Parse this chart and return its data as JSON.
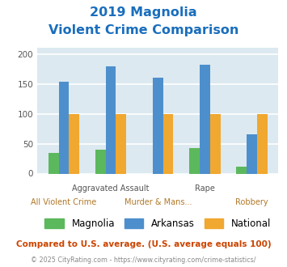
{
  "title_line1": "2019 Magnolia",
  "title_line2": "Violent Crime Comparison",
  "title_color": "#1a6ebd",
  "categories": [
    "All Violent Crime",
    "Aggravated Assault",
    "Murder & Mans...",
    "Rape",
    "Robbery"
  ],
  "series": {
    "Magnolia": [
      35,
      40,
      0,
      43,
      12
    ],
    "Arkansas": [
      153,
      179,
      161,
      182,
      65
    ],
    "National": [
      100,
      100,
      100,
      100,
      100
    ]
  },
  "colors": {
    "Magnolia": "#5cb85c",
    "Arkansas": "#4d8fcc",
    "National": "#f0a830"
  },
  "ylim": [
    0,
    210
  ],
  "yticks": [
    0,
    50,
    100,
    150,
    200
  ],
  "plot_area_color": "#dce9f0",
  "grid_color": "#ffffff",
  "footnote1": "Compared to U.S. average. (U.S. average equals 100)",
  "footnote1_color": "#cc4400",
  "footnote2": "© 2025 CityRating.com - https://www.cityrating.com/crime-statistics/",
  "footnote2_color": "#888888",
  "bar_width": 0.22
}
